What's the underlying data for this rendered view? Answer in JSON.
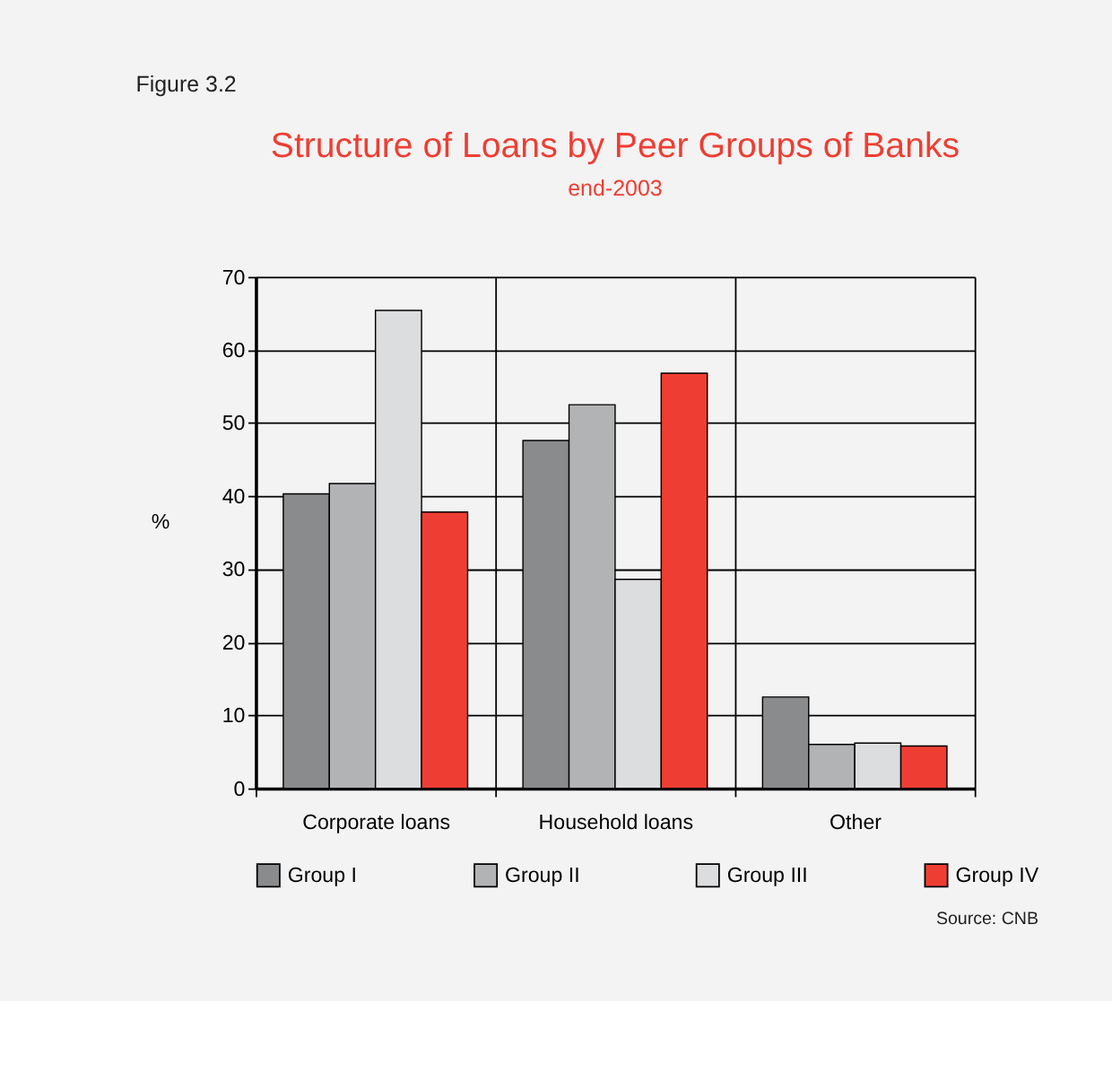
{
  "chart_data": {
    "type": "bar",
    "title": "Structure of Loans by Peer Groups of Banks",
    "subtitle": "end-2003",
    "ylabel": "%",
    "categories": [
      "Corporate loans",
      "Household loans",
      "Other"
    ],
    "series": [
      {
        "name": "Group I",
        "color": "#8a8b8d",
        "values": [
          40.3,
          47.6,
          12.5
        ]
      },
      {
        "name": "Group II",
        "color": "#b2b3b5",
        "values": [
          41.7,
          52.5,
          6.0
        ]
      },
      {
        "name": "Group III",
        "color": "#dcdddf",
        "values": [
          65.4,
          28.6,
          6.2
        ]
      },
      {
        "name": "Group IV",
        "color": "#ee3e33",
        "values": [
          37.8,
          56.8,
          5.8
        ]
      }
    ],
    "ylim": [
      0,
      70
    ],
    "yticks": [
      0,
      10,
      20,
      30,
      40,
      50,
      60,
      70
    ],
    "grid": true,
    "legend": "bottom",
    "annotations": [
      "Figure 3.2",
      "Source: CNB"
    ]
  }
}
